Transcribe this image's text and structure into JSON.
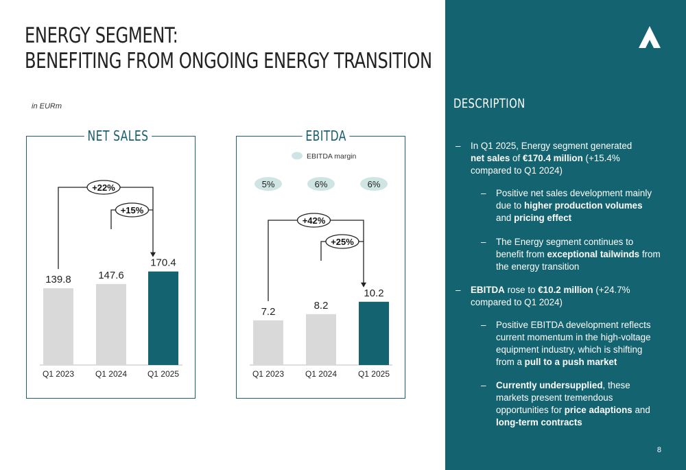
{
  "title": {
    "line1": "ENERGY SEGMENT:",
    "line2": "BENEFITING FROM ONGOING ENERGY TRANSITION"
  },
  "unit_note": "in EURm",
  "colors": {
    "accent": "#136370",
    "bar_prior": "#d9d9da",
    "margin_pill": "#cfe5e3"
  },
  "icons": [
    "logo-icon"
  ],
  "chart_data": [
    {
      "type": "bar",
      "title": "NET SALES",
      "categories": [
        "Q1 2023",
        "Q1 2024",
        "Q1 2025"
      ],
      "values": [
        139.8,
        147.6,
        170.4
      ],
      "value_labels": [
        "139.8",
        "147.6",
        "170.4"
      ],
      "ylim": [
        0,
        200
      ],
      "annotations": [
        {
          "label": "+22%",
          "from": "Q1 2023",
          "to": "Q1 2025"
        },
        {
          "label": "+15%",
          "from": "Q1 2024",
          "to": "Q1 2025"
        }
      ]
    },
    {
      "type": "bar",
      "title": "EBITDA",
      "categories": [
        "Q1 2023",
        "Q1 2024",
        "Q1 2025"
      ],
      "values": [
        7.2,
        8.2,
        10.2
      ],
      "value_labels": [
        "7.2",
        "8.2",
        "10.2"
      ],
      "ylim": [
        0,
        17.7
      ],
      "legend": "EBITDA margin",
      "margins": [
        "5%",
        "6%",
        "6%"
      ],
      "annotations": [
        {
          "label": "+42%",
          "from": "Q1 2023",
          "to": "Q1 2025"
        },
        {
          "label": "+25%",
          "from": "Q1 2024",
          "to": "Q1 2025"
        }
      ]
    }
  ],
  "sidebar": {
    "title": "DESCRIPTION",
    "page_number": "8",
    "b1": {
      "dash": "–",
      "t1": "In Q1 2025, Energy segment generated ",
      "bold1": "net sales",
      "t2": " of ",
      "bold2": "€170.4 million",
      "t3": " (+15.4% compared to Q1 2024)"
    },
    "b2": {
      "dash": "–",
      "t1": "Positive net sales development mainly due to ",
      "bold1": "higher production volumes",
      "t2": " and ",
      "bold2": "pricing effect"
    },
    "b3": {
      "dash": "–",
      "t1": "The Energy segment continues to benefit from ",
      "bold1": "exceptional tailwinds",
      "t2": " from the energy transition"
    },
    "b4": {
      "dash": "–",
      "bold1": "EBITDA",
      "t1": " rose to ",
      "bold2": "€10.2 million",
      "t2": " (+24.7% compared to Q1 2024)"
    },
    "b5": {
      "dash": "–",
      "t1": "Positive EBITDA development reflects current momentum in the high-voltage equipment industry, which is shifting from a ",
      "bold1": "pull to a push market"
    },
    "b6": {
      "dash": "–",
      "bold1": "Currently undersupplied",
      "t1": ", these markets present tremendous opportunities for ",
      "bold2": "price adaptions",
      "t2": " and ",
      "bold3": "long-term contracts"
    }
  }
}
